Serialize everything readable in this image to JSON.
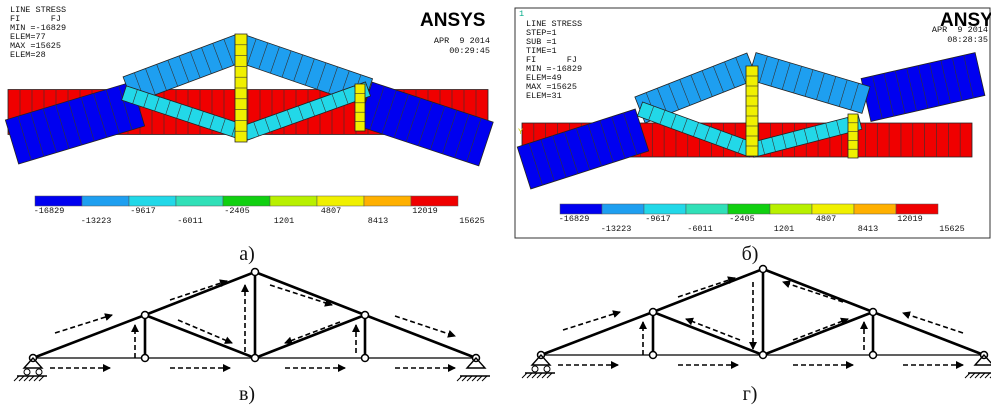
{
  "panels": [
    {
      "header": [
        "LINE STRESS",
        "FI      FJ",
        "MIN =-16829",
        "ELEM=77",
        "MAX =15625",
        "ELEM=28"
      ],
      "logo": "ANSYS",
      "date": "APR  9 2014",
      "time": "00:29:45",
      "legend": [
        "-16829",
        "-13223",
        "-9617",
        "-6011",
        "-2405",
        "1201",
        "4807",
        "8413",
        "12019",
        "15625"
      ],
      "caption": "а)"
    },
    {
      "window_number": "1",
      "axis_label": "Y",
      "header": [
        "LINE STRESS",
        "STEP=1",
        "SUB =1",
        "TIME=1",
        "FI      FJ",
        "MIN =-16829",
        "ELEM=49",
        "MAX =15625",
        "ELEM=31"
      ],
      "logo": "ANSYS",
      "date": "APR  9 2014",
      "time": "08:28:35",
      "legend": [
        "-16829",
        "-13223",
        "-9617",
        "-6011",
        "-2405",
        "1201",
        "4807",
        "8413",
        "12019",
        "15625"
      ],
      "caption": "б)"
    }
  ],
  "diagrams": [
    {
      "caption": "в)"
    },
    {
      "caption": "г)"
    }
  ]
}
